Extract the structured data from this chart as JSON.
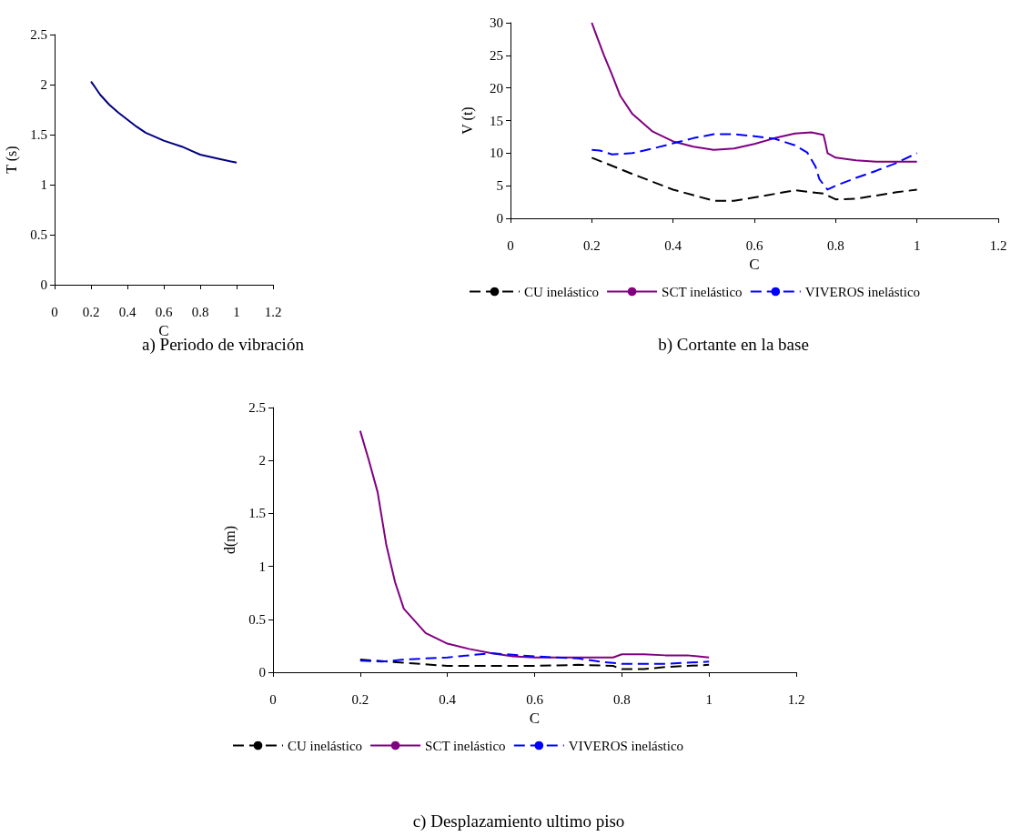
{
  "chart_data": [
    {
      "type": "line",
      "title": "a) Periodo de vibración",
      "xlabel": "C",
      "ylabel": "T (s)",
      "xlim": [
        0,
        1.2
      ],
      "xticks": [
        0,
        0.2,
        0.4,
        0.6,
        0.8,
        1,
        1.2
      ],
      "ylim": [
        0,
        2.5
      ],
      "yticks": [
        0,
        0.5,
        1,
        1.5,
        2,
        2.5
      ],
      "grid": false,
      "legend": false,
      "marker": "none",
      "series": [
        {
          "color": "#000080",
          "line_style": "solid",
          "x": [
            0.2,
            0.22,
            0.25,
            0.3,
            0.35,
            0.4,
            0.45,
            0.5,
            0.6,
            0.7,
            0.75,
            0.8,
            0.9,
            1
          ],
          "values": [
            2.03,
            1.98,
            1.9,
            1.8,
            1.72,
            1.65,
            1.58,
            1.52,
            1.44,
            1.38,
            1.34,
            1.3,
            1.26,
            1.22
          ]
        }
      ]
    },
    {
      "type": "line",
      "title": "b) Cortante en la base",
      "xlabel": "C",
      "ylabel": "V (t)",
      "xlim": [
        0,
        1.2
      ],
      "xticks": [
        0,
        0.2,
        0.4,
        0.6,
        0.8,
        1,
        1.2
      ],
      "ylim": [
        0,
        30
      ],
      "yticks": [
        0,
        5,
        10,
        15,
        20,
        25,
        30
      ],
      "grid": false,
      "legend": "bottom",
      "marker": "none",
      "series": [
        {
          "name": "CU inelástico",
          "color": "#000000",
          "line_style": "dashed",
          "x": [
            0.2,
            0.3,
            0.4,
            0.5,
            0.55,
            0.6,
            0.7,
            0.77,
            0.8,
            0.85,
            0.9,
            0.95,
            1
          ],
          "values": [
            9.3,
            6.8,
            4.4,
            2.7,
            2.7,
            3.2,
            4.3,
            3.8,
            2.9,
            3.0,
            3.5,
            4.0,
            4.4
          ]
        },
        {
          "name": "SCT inelástico",
          "color": "#800080",
          "line_style": "solid",
          "x": [
            0.2,
            0.21,
            0.23,
            0.25,
            0.27,
            0.3,
            0.35,
            0.4,
            0.45,
            0.5,
            0.55,
            0.6,
            0.65,
            0.7,
            0.74,
            0.77,
            0.775,
            0.78,
            0.8,
            0.85,
            0.9,
            1
          ],
          "values": [
            30,
            28.3,
            25,
            22,
            18.8,
            16,
            13.3,
            11.8,
            11,
            10.5,
            10.7,
            11.4,
            12.3,
            13,
            13.2,
            12.8,
            11.5,
            10,
            9.3,
            8.9,
            8.7,
            8.7
          ]
        },
        {
          "name": "VIVEROS inelástico",
          "color": "#0000ff",
          "line_style": "dashed",
          "x": [
            0.2,
            0.22,
            0.25,
            0.3,
            0.35,
            0.4,
            0.45,
            0.5,
            0.55,
            0.6,
            0.65,
            0.7,
            0.73,
            0.75,
            0.76,
            0.78,
            0.8,
            0.85,
            0.9,
            0.95,
            1
          ],
          "values": [
            10.5,
            10.4,
            9.8,
            10.0,
            10.7,
            11.5,
            12.3,
            12.9,
            12.9,
            12.6,
            12.2,
            11.2,
            10.1,
            8,
            6,
            4.4,
            5.0,
            6.2,
            7.3,
            8.5,
            10.0
          ]
        }
      ]
    },
    {
      "type": "line",
      "title": "c) Desplazamiento ultimo piso",
      "xlabel": "C",
      "ylabel": "d(m)",
      "xlim": [
        0,
        1.2
      ],
      "xticks": [
        0,
        0.2,
        0.4,
        0.6,
        0.8,
        1,
        1.2
      ],
      "ylim": [
        0,
        2.5
      ],
      "yticks": [
        0,
        0.5,
        1,
        1.5,
        2,
        2.5
      ],
      "grid": false,
      "legend": "bottom",
      "marker": "none",
      "series": [
        {
          "name": "CU inelástico",
          "color": "#000000",
          "line_style": "dashed",
          "x": [
            0.2,
            0.3,
            0.4,
            0.5,
            0.6,
            0.7,
            0.78,
            0.8,
            0.85,
            0.9,
            1
          ],
          "values": [
            0.12,
            0.09,
            0.06,
            0.06,
            0.06,
            0.07,
            0.06,
            0.03,
            0.03,
            0.05,
            0.07
          ]
        },
        {
          "name": "SCT inelástico",
          "color": "#800080",
          "line_style": "solid",
          "x": [
            0.2,
            0.22,
            0.24,
            0.26,
            0.28,
            0.3,
            0.35,
            0.4,
            0.45,
            0.5,
            0.55,
            0.6,
            0.7,
            0.78,
            0.8,
            0.85,
            0.9,
            0.95,
            1
          ],
          "values": [
            2.28,
            2.0,
            1.7,
            1.2,
            0.85,
            0.6,
            0.37,
            0.27,
            0.22,
            0.18,
            0.15,
            0.14,
            0.14,
            0.14,
            0.17,
            0.17,
            0.16,
            0.16,
            0.14
          ]
        },
        {
          "name": "VIVEROS inelástico",
          "color": "#0000ff",
          "line_style": "dashed",
          "x": [
            0.2,
            0.25,
            0.3,
            0.4,
            0.5,
            0.6,
            0.7,
            0.75,
            0.8,
            0.9,
            1
          ],
          "values": [
            0.11,
            0.1,
            0.12,
            0.14,
            0.18,
            0.15,
            0.13,
            0.1,
            0.08,
            0.08,
            0.1
          ]
        }
      ]
    }
  ]
}
